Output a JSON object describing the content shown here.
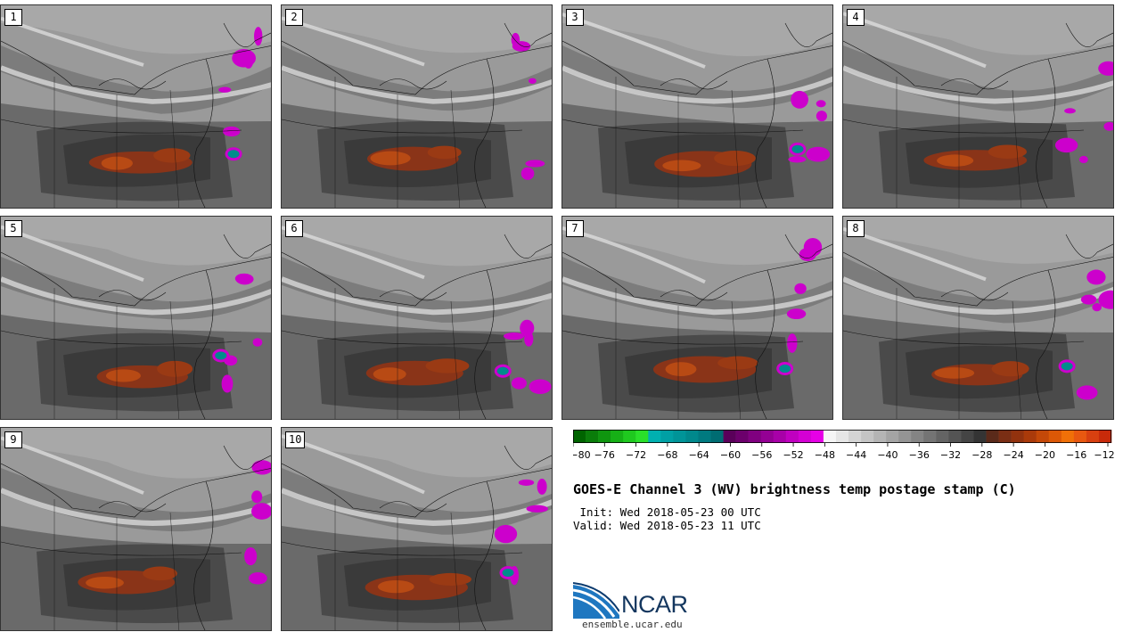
{
  "panels": [
    {
      "label": "1"
    },
    {
      "label": "2"
    },
    {
      "label": "3"
    },
    {
      "label": "4"
    },
    {
      "label": "5"
    },
    {
      "label": "6"
    },
    {
      "label": "7"
    },
    {
      "label": "8"
    },
    {
      "label": "9"
    },
    {
      "label": "10"
    }
  ],
  "colorbar": {
    "tick_labels": [
      "−80",
      "−76",
      "−72",
      "−68",
      "−64",
      "−60",
      "−56",
      "−52",
      "−48",
      "−44",
      "−40",
      "−36",
      "−32",
      "−28",
      "−24",
      "−20",
      "−16",
      "−12"
    ],
    "colors": [
      "#006400",
      "#0a7d0a",
      "#0f960f",
      "#16b016",
      "#1fc91f",
      "#2ae02a",
      "#00b0b0",
      "#00a0a4",
      "#009498",
      "#00888c",
      "#007a80",
      "#006c72",
      "#5a005a",
      "#6c006c",
      "#800080",
      "#940094",
      "#a800a8",
      "#c000c0",
      "#d400d4",
      "#e600e6",
      "#f5f5f5",
      "#e6e6e6",
      "#d4d4d4",
      "#c4c4c4",
      "#b4b4b4",
      "#a4a4a4",
      "#949494",
      "#848484",
      "#747474",
      "#646464",
      "#545454",
      "#444444",
      "#343434",
      "#5a2a1a",
      "#7a2e14",
      "#92320e",
      "#aa3a0a",
      "#c44808",
      "#dc5806",
      "#f07008",
      "#e85810",
      "#d84010",
      "#c82a0a"
    ]
  },
  "title": "GOES-E Channel 3 (WV) brightness temp postage stamp (C)",
  "init_line": " Init: Wed 2018-05-23 00 UTC",
  "valid_line": "Valid: Wed 2018-05-23 11 UTC",
  "logo": {
    "name": "NCAR",
    "url": "ensemble.ucar.edu"
  }
}
